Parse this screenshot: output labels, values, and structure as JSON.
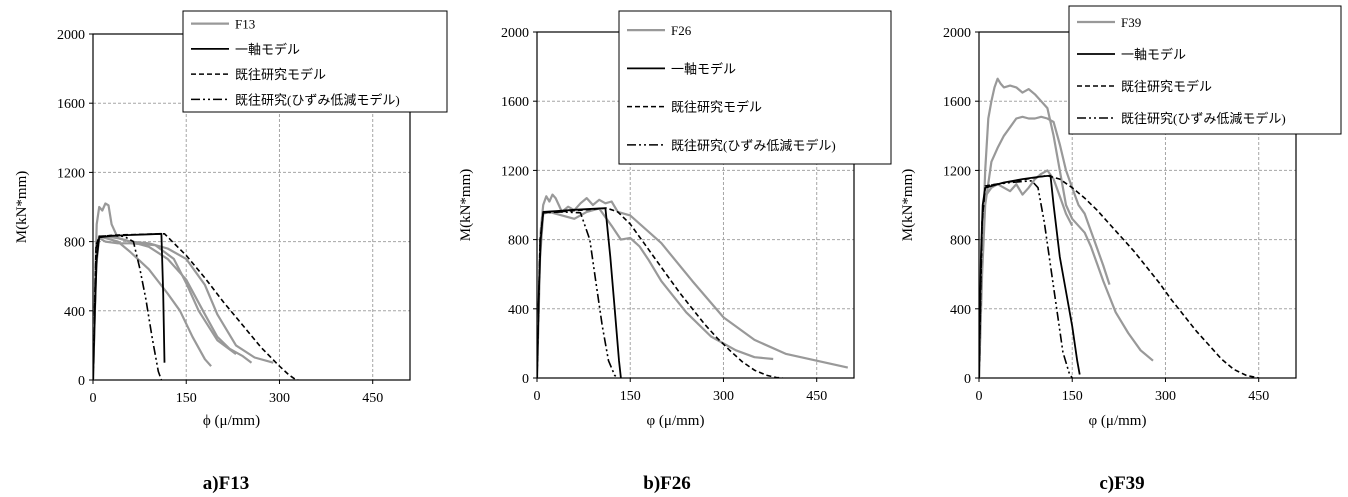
{
  "chart_data": [
    {
      "type": "line",
      "caption": "a)F13",
      "xlabel": "ϕ (μ/mm)",
      "ylabel": "M(kN*mm)",
      "xlim": [
        0,
        510
      ],
      "ylim": [
        0,
        2000
      ],
      "xticks": [
        0,
        150,
        300,
        450
      ],
      "yticks": [
        0,
        400,
        800,
        1200,
        1600,
        2000
      ],
      "grid": true,
      "legend_position": "top-right",
      "legend": [
        "F13",
        "一軸モデル",
        "既往研究モデル",
        "既往研究(ひずみ低減モデル)"
      ],
      "series": [
        {
          "legend_index": 0,
          "style": "solid-gray",
          "x": [
            0,
            3,
            6,
            10,
            15,
            20,
            25,
            30,
            40,
            60,
            90,
            120,
            150,
            180,
            200,
            220,
            240,
            255
          ],
          "y": [
            0,
            500,
            900,
            1000,
            980,
            1020,
            1010,
            900,
            820,
            800,
            770,
            700,
            580,
            380,
            250,
            180,
            140,
            100
          ]
        },
        {
          "legend_index": 0,
          "style": "solid-gray",
          "x": [
            0,
            5,
            10,
            20,
            40,
            60,
            90,
            120,
            150,
            180,
            200,
            230,
            260,
            290
          ],
          "y": [
            0,
            700,
            830,
            830,
            820,
            800,
            790,
            760,
            700,
            550,
            380,
            200,
            130,
            100
          ]
        },
        {
          "legend_index": 0,
          "style": "solid-gray",
          "x": [
            0,
            5,
            10,
            20,
            40,
            60,
            90,
            120,
            140,
            160,
            180,
            190
          ],
          "y": [
            0,
            650,
            830,
            820,
            800,
            740,
            640,
            500,
            400,
            250,
            120,
            80
          ]
        },
        {
          "legend_index": 0,
          "style": "solid-gray",
          "x": [
            0,
            5,
            10,
            20,
            40,
            60,
            100,
            130,
            150,
            170,
            200,
            230
          ],
          "y": [
            0,
            700,
            820,
            800,
            790,
            790,
            780,
            700,
            560,
            400,
            230,
            150
          ]
        },
        {
          "legend_index": 1,
          "style": "solid-black",
          "x": [
            0,
            3,
            6,
            10,
            30,
            60,
            90,
            110,
            113,
            115
          ],
          "y": [
            0,
            400,
            700,
            825,
            833,
            838,
            842,
            845,
            500,
            100
          ]
        },
        {
          "legend_index": 2,
          "style": "dashed",
          "x": [
            0,
            5,
            10,
            40,
            80,
            115,
            150,
            180,
            210,
            240,
            270,
            300,
            315,
            325,
            330
          ],
          "y": [
            0,
            780,
            830,
            838,
            842,
            845,
            720,
            590,
            450,
            320,
            190,
            80,
            30,
            5,
            0
          ]
        },
        {
          "legend_index": 3,
          "style": "dashdot",
          "x": [
            0,
            5,
            10,
            30,
            50,
            65,
            75,
            85,
            95,
            105,
            110
          ],
          "y": [
            0,
            760,
            830,
            835,
            830,
            800,
            650,
            470,
            250,
            50,
            0
          ]
        }
      ]
    },
    {
      "type": "line",
      "caption": "b)F26",
      "xlabel": "φ (μ/mm)",
      "ylabel": "M(kN*mm)",
      "xlim": [
        0,
        510
      ],
      "ylim": [
        0,
        2000
      ],
      "xticks": [
        0,
        150,
        300,
        450
      ],
      "yticks": [
        0,
        400,
        800,
        1200,
        1600,
        2000
      ],
      "grid": true,
      "legend_position": "top-right",
      "legend": [
        "F26",
        "一軸モデル",
        "既往研究モデル",
        "既往研究(ひずみ低減モデル)"
      ],
      "series": [
        {
          "legend_index": 0,
          "style": "solid-gray",
          "x": [
            0,
            3,
            6,
            10,
            15,
            20,
            25,
            30,
            35,
            40,
            50,
            60,
            70,
            80,
            90,
            100,
            110,
            120,
            130,
            140,
            150,
            200,
            250,
            300,
            350,
            400,
            450,
            500
          ],
          "y": [
            0,
            500,
            850,
            1000,
            1050,
            1020,
            1060,
            1040,
            1000,
            960,
            990,
            970,
            1010,
            1040,
            1000,
            1030,
            1010,
            1020,
            960,
            950,
            940,
            780,
            560,
            350,
            220,
            140,
            100,
            60
          ]
        },
        {
          "legend_index": 0,
          "style": "solid-gray",
          "x": [
            0,
            5,
            10,
            20,
            30,
            40,
            60,
            80,
            100,
            120,
            135,
            150,
            165,
            180,
            200,
            240,
            280,
            320,
            350,
            380
          ],
          "y": [
            0,
            700,
            950,
            960,
            950,
            940,
            920,
            960,
            980,
            880,
            800,
            810,
            760,
            680,
            560,
            380,
            240,
            160,
            120,
            110
          ]
        },
        {
          "legend_index": 1,
          "style": "solid-black",
          "x": [
            0,
            3,
            6,
            10,
            30,
            60,
            90,
            110,
            118,
            125,
            132,
            135
          ],
          "y": [
            0,
            500,
            800,
            960,
            965,
            972,
            978,
            982,
            700,
            400,
            100,
            0
          ]
        },
        {
          "legend_index": 2,
          "style": "dashed",
          "x": [
            0,
            5,
            10,
            50,
            90,
            112,
            130,
            150,
            170,
            190,
            210,
            230,
            250,
            270,
            290,
            310,
            330,
            350,
            370,
            385,
            395
          ],
          "y": [
            0,
            800,
            955,
            965,
            975,
            982,
            960,
            890,
            790,
            690,
            590,
            490,
            400,
            310,
            230,
            160,
            95,
            45,
            15,
            3,
            0
          ]
        },
        {
          "legend_index": 3,
          "style": "dashdot",
          "x": [
            0,
            5,
            10,
            40,
            70,
            85,
            95,
            105,
            115,
            125,
            130
          ],
          "y": [
            0,
            800,
            955,
            960,
            955,
            800,
            550,
            300,
            100,
            15,
            0
          ]
        }
      ]
    },
    {
      "type": "line",
      "caption": "c)F39",
      "xlabel": "φ (μ/mm)",
      "ylabel": "M(kN*mm)",
      "xlim": [
        0,
        510
      ],
      "ylim": [
        0,
        2000
      ],
      "xticks": [
        0,
        150,
        300,
        450
      ],
      "yticks": [
        0,
        400,
        800,
        1200,
        1600,
        2000
      ],
      "grid": true,
      "legend_position": "top-right",
      "legend": [
        "F39",
        "一軸モデル",
        "既往研究モデル",
        "既往研究(ひずみ低減モデル)"
      ],
      "series": [
        {
          "legend_index": 0,
          "style": "solid-gray",
          "x": [
            0,
            5,
            10,
            15,
            20,
            25,
            30,
            35,
            40,
            50,
            60,
            70,
            80,
            90,
            100,
            110,
            120,
            130,
            140,
            150,
            160,
            170,
            180,
            190,
            200,
            210,
            220,
            240,
            260,
            280
          ],
          "y": [
            0,
            700,
            1200,
            1500,
            1600,
            1680,
            1730,
            1700,
            1680,
            1690,
            1680,
            1650,
            1670,
            1640,
            1600,
            1560,
            1400,
            1200,
            1000,
            920,
            880,
            840,
            760,
            660,
            560,
            470,
            380,
            260,
            160,
            100
          ]
        },
        {
          "legend_index": 0,
          "style": "solid-gray",
          "x": [
            0,
            5,
            10,
            20,
            30,
            40,
            50,
            60,
            70,
            80,
            90,
            100,
            110,
            120,
            130,
            140,
            150,
            160,
            170,
            180,
            190,
            200,
            210
          ],
          "y": [
            0,
            600,
            1000,
            1250,
            1330,
            1400,
            1450,
            1500,
            1510,
            1500,
            1500,
            1510,
            1500,
            1480,
            1350,
            1200,
            1100,
            1000,
            950,
            850,
            750,
            650,
            540
          ]
        },
        {
          "legend_index": 0,
          "style": "solid-gray",
          "x": [
            0,
            5,
            10,
            20,
            30,
            40,
            50,
            60,
            70,
            80,
            90,
            100,
            110,
            120,
            130,
            140,
            150
          ],
          "y": [
            0,
            700,
            1050,
            1100,
            1120,
            1100,
            1080,
            1120,
            1060,
            1100,
            1150,
            1180,
            1200,
            1150,
            1050,
            950,
            880
          ]
        },
        {
          "legend_index": 1,
          "style": "solid-black",
          "x": [
            0,
            3,
            6,
            10,
            40,
            70,
            100,
            115,
            120,
            130,
            140,
            150,
            158,
            162
          ],
          "y": [
            0,
            700,
            1000,
            1100,
            1130,
            1150,
            1165,
            1170,
            1000,
            700,
            500,
            300,
            100,
            20
          ]
        },
        {
          "legend_index": 2,
          "style": "dashed",
          "x": [
            0,
            5,
            10,
            60,
            110,
            130,
            150,
            170,
            190,
            210,
            230,
            250,
            270,
            290,
            310,
            330,
            350,
            370,
            390,
            410,
            430,
            450
          ],
          "y": [
            0,
            900,
            1110,
            1140,
            1170,
            1150,
            1100,
            1040,
            970,
            890,
            810,
            730,
            640,
            550,
            450,
            360,
            270,
            190,
            110,
            50,
            15,
            0
          ]
        },
        {
          "legend_index": 3,
          "style": "dashdot",
          "x": [
            0,
            5,
            10,
            50,
            85,
            95,
            105,
            115,
            125,
            135,
            145,
            150
          ],
          "y": [
            0,
            900,
            1110,
            1130,
            1140,
            1100,
            900,
            650,
            400,
            150,
            30,
            0
          ]
        }
      ]
    }
  ]
}
